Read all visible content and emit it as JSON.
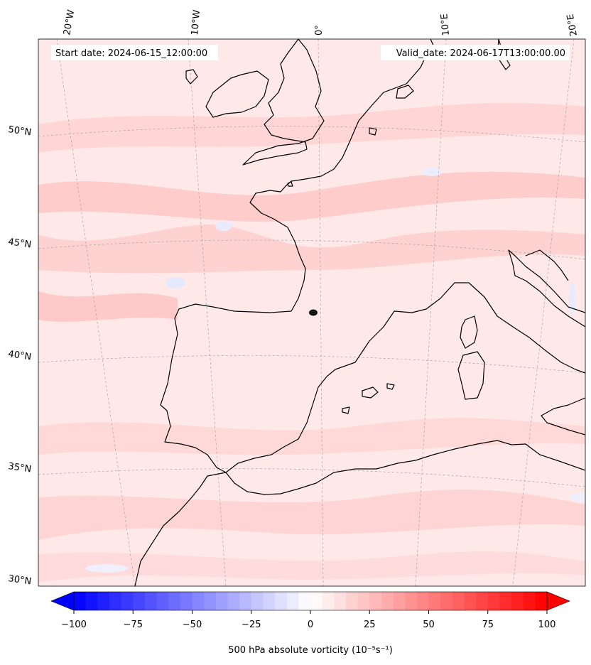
{
  "header": {
    "start_date": "Start date: 2024-06-15_12:00:00",
    "valid_date": "Valid_date: 2024-06-17T13:00:00.00"
  },
  "graticule": {
    "lon_labels": [
      "20°W",
      "10°W",
      "0°",
      "10°E",
      "20°E"
    ],
    "lat_labels": [
      "50°N",
      "45°N",
      "40°N",
      "35°N",
      "30°N"
    ]
  },
  "colorbar": {
    "min": -100,
    "max": 100,
    "levels": 41,
    "ticks": [
      "−100",
      "−75",
      "−50",
      "−25",
      "0",
      "25",
      "50",
      "75",
      "100"
    ],
    "label": "500 hPa absolute vorticity (10⁻⁵s⁻¹)",
    "colors": {
      "negative": "#0000ff",
      "zero": "#ffffff",
      "positive": "#ff0000"
    }
  },
  "map_colors": {
    "background": "#ffeaea",
    "band_light": "#ffd5d5",
    "band_mid": "#ffc0c0",
    "blue_spot": "#e6ecff",
    "land": "#ffeded",
    "coast": "#000000"
  }
}
